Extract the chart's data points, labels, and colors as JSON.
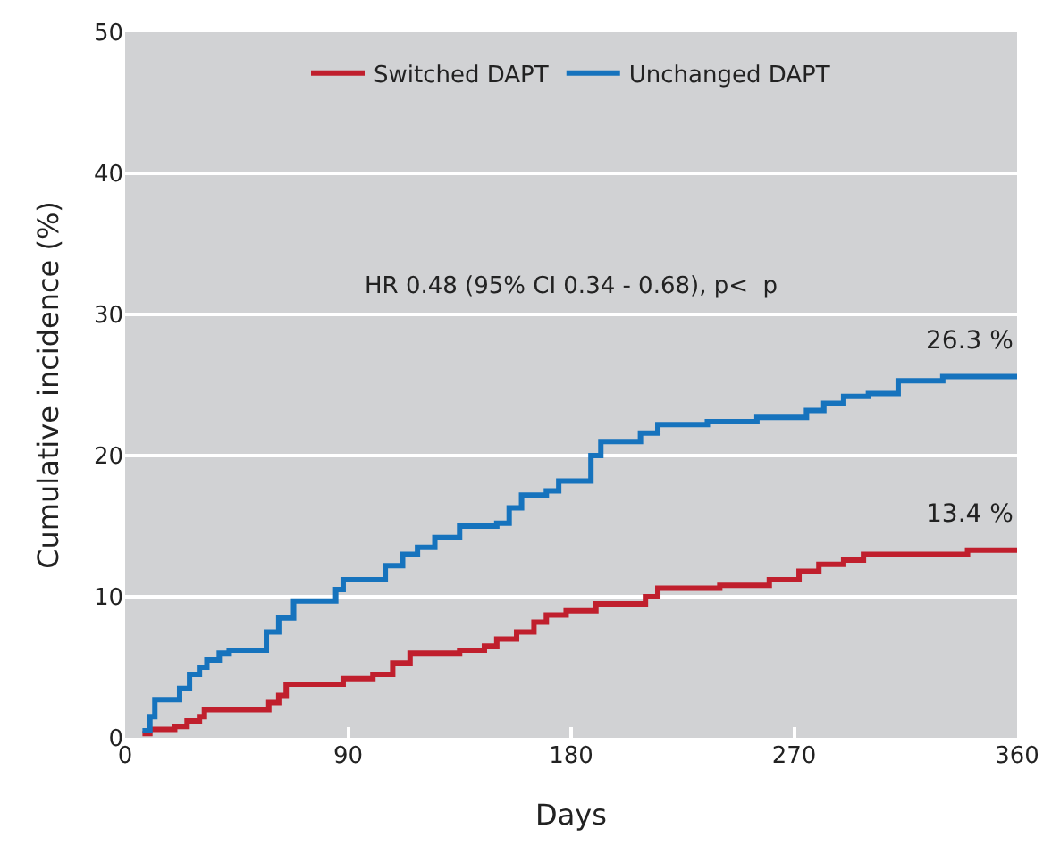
{
  "chart_data": {
    "type": "step",
    "xlabel": "Days",
    "ylabel": "Cumulative incidence (%)",
    "xlim": [
      0,
      360
    ],
    "xticks": [
      0,
      90,
      180,
      270,
      360
    ],
    "ylim": [
      0,
      50
    ],
    "yticks": [
      0,
      10,
      20,
      30,
      40,
      50
    ],
    "grid": "y",
    "legend": "top",
    "marker": "none",
    "line_style": "solid",
    "series": [
      {
        "name": "Switched DAPT",
        "color": "#c01f2d",
        "x": [
          7,
          10,
          20,
          25,
          30,
          32,
          55,
          58,
          62,
          65,
          80,
          88,
          100,
          108,
          115,
          135,
          145,
          150,
          158,
          165,
          170,
          178,
          190,
          210,
          215,
          240,
          260,
          272,
          280,
          290,
          298,
          340,
          360
        ],
        "values": [
          0.3,
          0.6,
          0.8,
          1.2,
          1.5,
          2,
          2,
          2.5,
          3,
          3.8,
          3.8,
          4.2,
          4.5,
          5.3,
          6,
          6.2,
          6.5,
          7,
          7.5,
          8.2,
          8.7,
          9,
          9.5,
          10,
          10.6,
          10.8,
          11.2,
          11.8,
          12.3,
          12.6,
          13,
          13.3,
          13.3
        ]
      },
      {
        "name": "Unchanged DAPT",
        "color": "#1673bd",
        "x": [
          7,
          10,
          12,
          18,
          22,
          26,
          30,
          33,
          38,
          42,
          55,
          57,
          62,
          68,
          80,
          85,
          88,
          100,
          105,
          112,
          118,
          125,
          135,
          150,
          155,
          160,
          170,
          175,
          188,
          192,
          205,
          208,
          215,
          235,
          255,
          275,
          282,
          290,
          300,
          312,
          330,
          360
        ],
        "values": [
          0.5,
          1.5,
          2.7,
          2.7,
          3.5,
          4.5,
          5,
          5.5,
          6,
          6.2,
          6.2,
          7.5,
          8.5,
          9.7,
          9.7,
          10.5,
          11.2,
          11.2,
          12.2,
          13,
          13.5,
          14.2,
          15,
          15.2,
          16.3,
          17.2,
          17.5,
          18.2,
          20,
          21,
          21,
          21.6,
          22.2,
          22.4,
          22.7,
          23.2,
          23.7,
          24.2,
          24.4,
          25.3,
          25.6,
          25.6
        ]
      }
    ],
    "annotations": [
      "HR 0.48 (95% CI 0.34 - 0.68), p<  p",
      "26.3 %",
      "13.4 %"
    ]
  }
}
